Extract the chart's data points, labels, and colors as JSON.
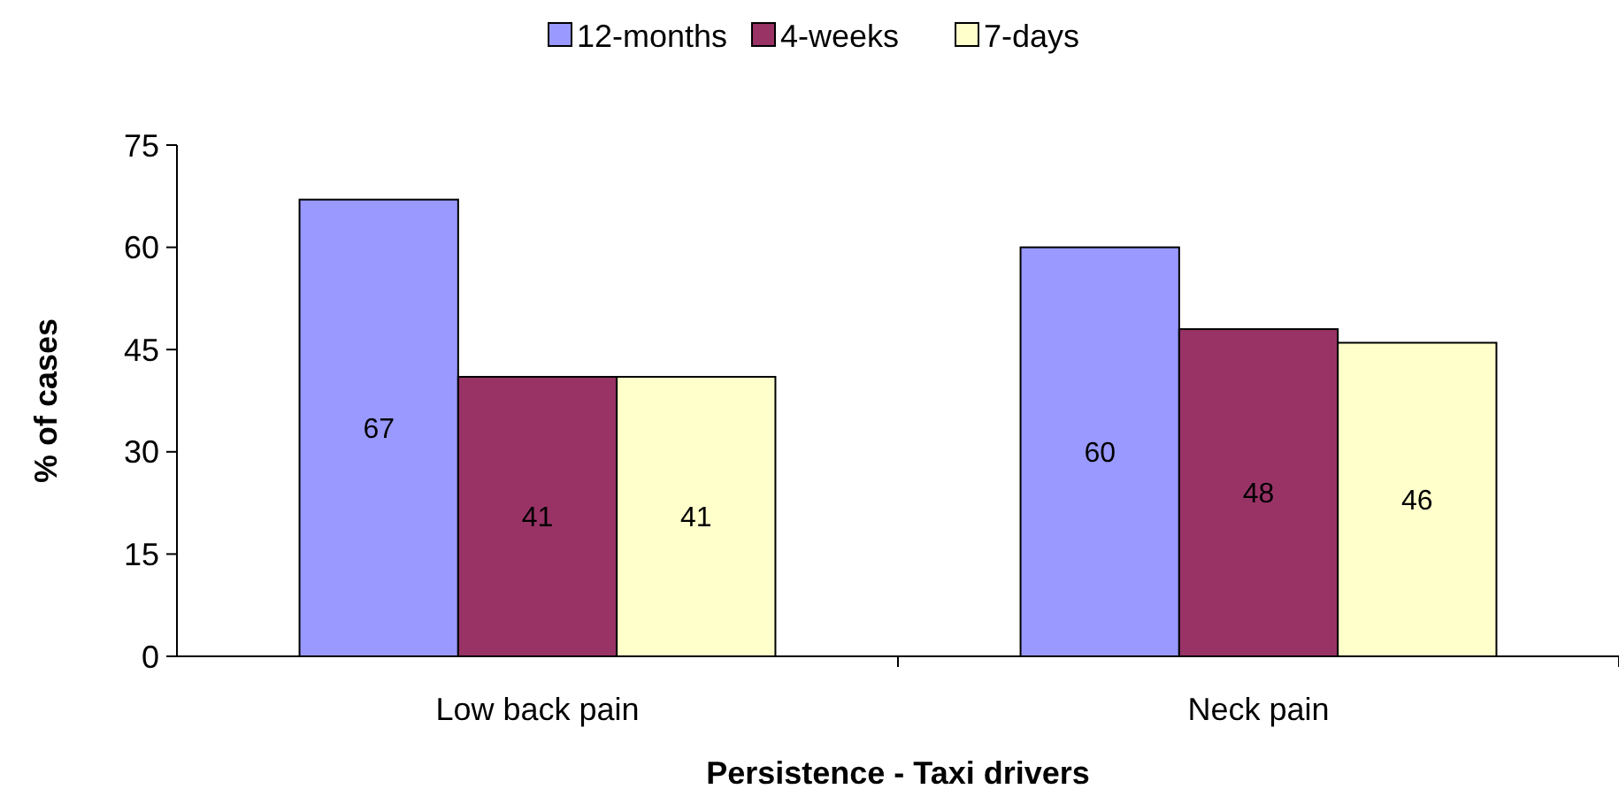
{
  "chart_data": {
    "type": "bar",
    "xlabel": "Persistence - Taxi drivers",
    "ylabel": "% of cases",
    "categories": [
      "Low back pain",
      "Neck pain"
    ],
    "series": [
      {
        "name": "12-months",
        "color": "#9999ff",
        "values": [
          67,
          60
        ]
      },
      {
        "name": "4-weeks",
        "color": "#993366",
        "values": [
          41,
          48
        ]
      },
      {
        "name": "7-days",
        "color": "#ffffcc",
        "values": [
          41,
          46
        ]
      }
    ],
    "ylim": [
      0,
      75
    ],
    "yticks": [
      0,
      15,
      30,
      45,
      60,
      75
    ],
    "grid": false,
    "legend": "top",
    "data_labels": true
  }
}
